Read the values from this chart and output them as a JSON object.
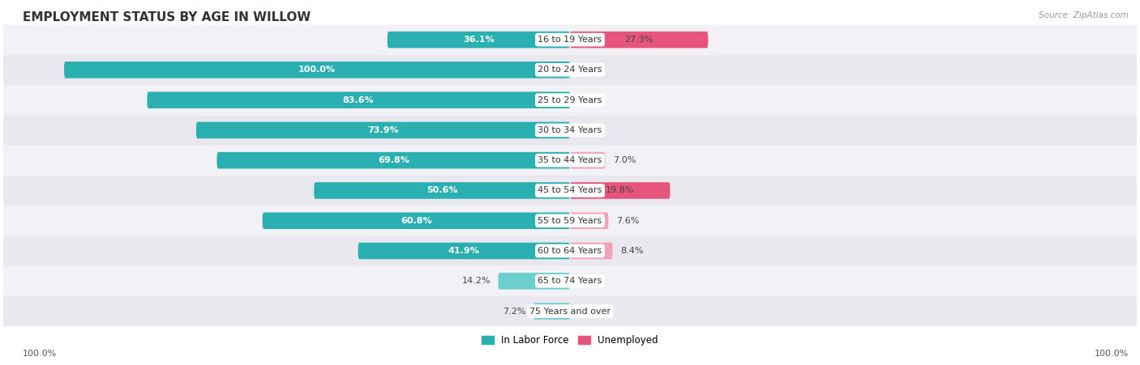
{
  "title": "EMPLOYMENT STATUS BY AGE IN WILLOW",
  "source": "Source: ZipAtlas.com",
  "categories": [
    "16 to 19 Years",
    "20 to 24 Years",
    "25 to 29 Years",
    "30 to 34 Years",
    "35 to 44 Years",
    "45 to 54 Years",
    "55 to 59 Years",
    "60 to 64 Years",
    "65 to 74 Years",
    "75 Years and over"
  ],
  "labor_force": [
    36.1,
    100.0,
    83.6,
    73.9,
    69.8,
    50.6,
    60.8,
    41.9,
    14.2,
    7.2
  ],
  "unemployed": [
    27.3,
    0.0,
    0.0,
    0.0,
    7.0,
    19.8,
    7.6,
    8.4,
    0.0,
    0.0
  ],
  "labor_force_color_dark": "#2ab0b0",
  "labor_force_color_light": "#6ecfcf",
  "unemployed_color_dark": "#e8557a",
  "unemployed_color_light": "#f4a0b8",
  "row_bg_dark": "#e8e8ee",
  "row_bg_light": "#f2f2f6",
  "label_white": "#ffffff",
  "label_dark": "#444444",
  "axis_label": "100.0%",
  "max_value": 100.0,
  "legend_labor": "In Labor Force",
  "legend_unemployed": "Unemployed",
  "title_fontsize": 11,
  "bar_label_fontsize": 8,
  "category_fontsize": 8,
  "source_fontsize": 7.5,
  "lf_inside_threshold": 20,
  "un_inside_threshold": 12
}
